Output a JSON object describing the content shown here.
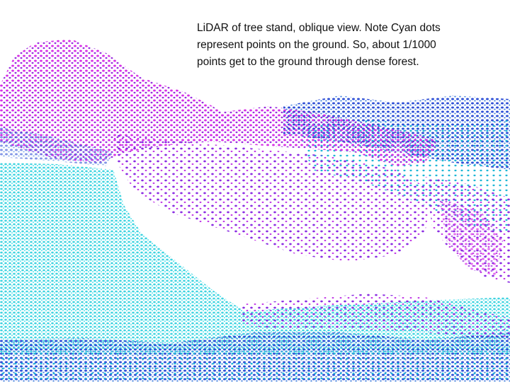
{
  "caption": {
    "lines": [
      "LiDAR of tree stand, oblique view.  Note Cyan dots",
      "represent points on the ground.  So, about 1/1000",
      "points get to the ground through dense forest."
    ]
  }
}
